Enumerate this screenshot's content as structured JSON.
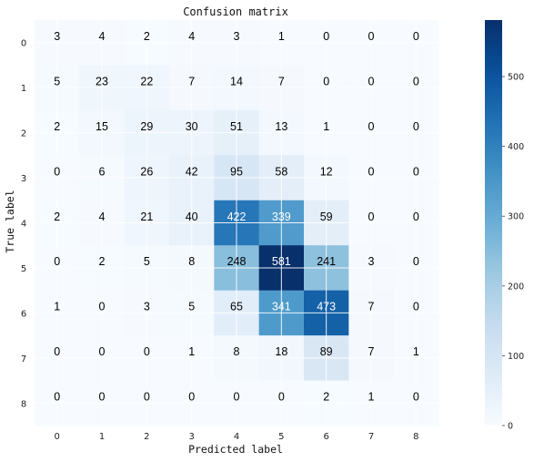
{
  "chart_data": {
    "type": "heatmap",
    "title": "Confusion matrix",
    "xlabel": "Predicted label",
    "ylabel": "True label",
    "x_categories": [
      "0",
      "1",
      "2",
      "3",
      "4",
      "5",
      "6",
      "7",
      "8"
    ],
    "y_categories": [
      "0",
      "1",
      "2",
      "3",
      "4",
      "5",
      "6",
      "7",
      "8"
    ],
    "values": [
      [
        3,
        4,
        2,
        4,
        3,
        1,
        0,
        0,
        0
      ],
      [
        5,
        23,
        22,
        7,
        14,
        7,
        0,
        0,
        0
      ],
      [
        2,
        15,
        29,
        30,
        51,
        13,
        1,
        0,
        0
      ],
      [
        0,
        6,
        26,
        42,
        95,
        58,
        12,
        0,
        0
      ],
      [
        2,
        4,
        21,
        40,
        422,
        339,
        59,
        0,
        0
      ],
      [
        0,
        2,
        5,
        8,
        248,
        581,
        241,
        3,
        0
      ],
      [
        1,
        0,
        3,
        5,
        65,
        341,
        473,
        7,
        0
      ],
      [
        0,
        0,
        0,
        1,
        8,
        18,
        89,
        7,
        1
      ],
      [
        0,
        0,
        0,
        0,
        0,
        0,
        2,
        1,
        0
      ]
    ],
    "colormap": "Blues",
    "vmin": 0,
    "vmax": 581,
    "colorbar_ticks": [
      0,
      100,
      200,
      300,
      400,
      500
    ],
    "grid": true
  }
}
